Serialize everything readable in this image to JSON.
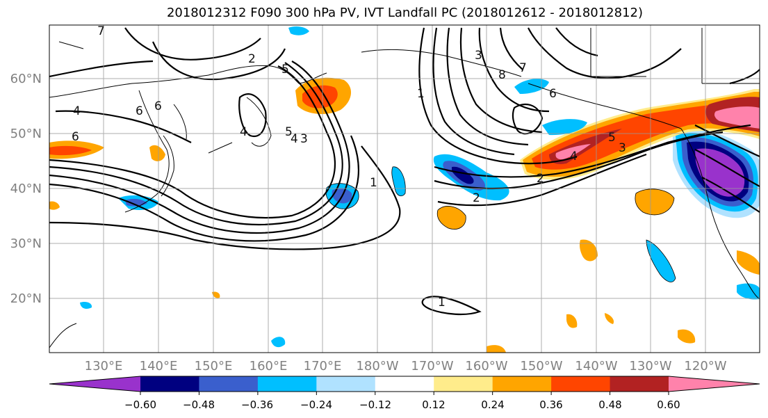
{
  "title": "2018012312 F090 300 hPa PV, IVT Landfall PC (2018012612 - 2018012812)",
  "map": {
    "lat_labels": [
      "60°N",
      "50°N",
      "40°N",
      "30°N",
      "20°N"
    ],
    "lon_labels": [
      "130°E",
      "140°E",
      "150°E",
      "160°E",
      "170°E",
      "180°W",
      "170°W",
      "160°W",
      "150°W",
      "140°W",
      "130°W",
      "120°W"
    ],
    "contour_labels": [
      "7",
      "2",
      "5",
      "6",
      "5",
      "4",
      "4",
      "3",
      "1",
      "6",
      "6",
      "1",
      "8",
      "7",
      "6",
      "3",
      "5",
      "4",
      "2",
      "2",
      "1",
      "3",
      "4"
    ]
  },
  "colorbar": {
    "colors": [
      "#9932CC",
      "#000080",
      "#3A5FCD",
      "#00BFFF",
      "#B0E2FF",
      "#FFFFFF",
      "#FFEC8B",
      "#FFA500",
      "#FF4500",
      "#B22222",
      "#FF82AB"
    ],
    "tick_labels": [
      "−0.60",
      "−0.48",
      "−0.36",
      "−0.24",
      "−0.12",
      "0.12",
      "0.24",
      "0.36",
      "0.48",
      "0.60"
    ]
  }
}
